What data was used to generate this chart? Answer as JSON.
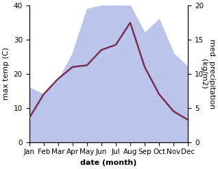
{
  "months": [
    "Jan",
    "Feb",
    "Mar",
    "Apr",
    "May",
    "Jun",
    "Jul",
    "Aug",
    "Sep",
    "Oct",
    "Nov",
    "Dec"
  ],
  "temperature": [
    7.0,
    14.0,
    18.5,
    22.0,
    22.5,
    27.0,
    28.5,
    35.0,
    22.0,
    14.0,
    9.0,
    6.5
  ],
  "precipitation": [
    8.0,
    7.0,
    9.0,
    13.0,
    19.5,
    20.0,
    20.0,
    20.0,
    16.0,
    18.0,
    13.0,
    11.0
  ],
  "temp_ylim": [
    0,
    40
  ],
  "precip_ylim": [
    0,
    20
  ],
  "temp_color": "#7b2d52",
  "precip_fill_color": "#bbc4ea",
  "xlabel": "date (month)",
  "ylabel_left": "max temp (C)",
  "ylabel_right": "med. precipitation\n(kg/m2)",
  "label_fontsize": 8,
  "tick_fontsize": 7.5,
  "line_width": 1.8,
  "background_color": "#ffffff",
  "temp_yticks": [
    0,
    10,
    20,
    30,
    40
  ],
  "precip_yticks": [
    0,
    5,
    10,
    15,
    20
  ]
}
